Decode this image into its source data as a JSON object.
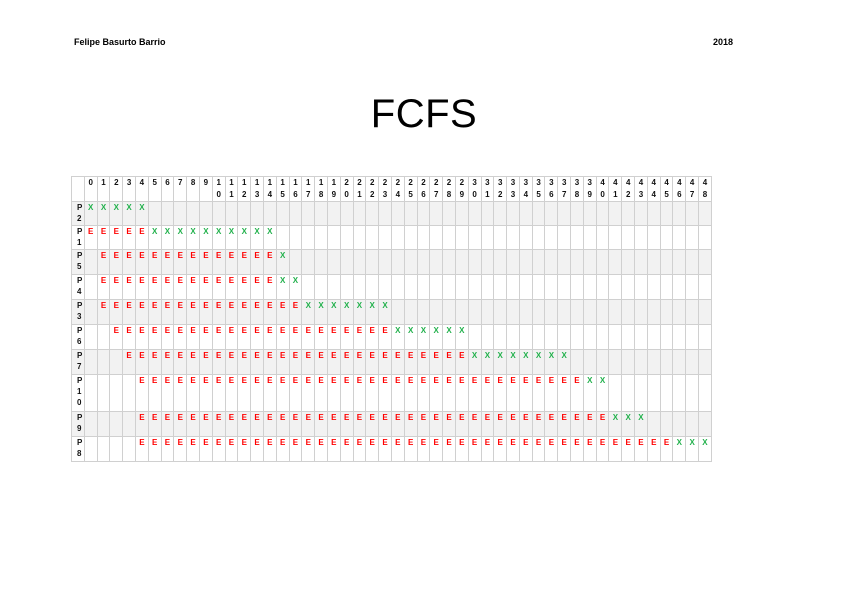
{
  "header": {
    "author": "Felipe Basurto Barrio",
    "year": "2018"
  },
  "title": "FCFS",
  "table": {
    "time_columns": [
      "0",
      "1",
      "2",
      "3",
      "4",
      "5",
      "6",
      "7",
      "8",
      "9",
      "10",
      "11",
      "12",
      "13",
      "14",
      "15",
      "16",
      "17",
      "18",
      "19",
      "20",
      "21",
      "22",
      "23",
      "24",
      "25",
      "26",
      "27",
      "28",
      "29",
      "30",
      "31",
      "32",
      "33",
      "34",
      "35",
      "36",
      "37",
      "38",
      "39",
      "40",
      "41",
      "42",
      "43",
      "44",
      "45",
      "46",
      "47",
      "48"
    ],
    "rows": [
      {
        "process": "P2",
        "cells": "XXXXX"
      },
      {
        "process": "P1",
        "cells": "EEEEEXXXXXXXXXX"
      },
      {
        "process": "P5",
        "cells": " EEEEEEEEEEEEEEX"
      },
      {
        "process": "P4",
        "cells": " EEEEEEEEEEEEEEXX"
      },
      {
        "process": "P3",
        "cells": " EEEEEEEEEEEEEEEEXXXXXXX"
      },
      {
        "process": "P6",
        "cells": "  EEEEEEEEEEEEEEEEEEEEEEXXXXXX"
      },
      {
        "process": "P7",
        "cells": "   EEEEEEEEEEEEEEEEEEEEEEEEEEEXXXXXXXX"
      },
      {
        "process": "P10",
        "cells": "    EEEEEEEEEEEEEEEEEEEEEEEEEEEEEEEEEEEXX"
      },
      {
        "process": "P9",
        "cells": "    EEEEEEEEEEEEEEEEEEEEEEEEEEEEEEEEEEEEEXXX"
      },
      {
        "process": "P8",
        "cells": "    EEEEEEEEEEEEEEEEEEEEEEEEEEEEEEEEEEEEEEEEEEXXXX"
      }
    ]
  }
}
